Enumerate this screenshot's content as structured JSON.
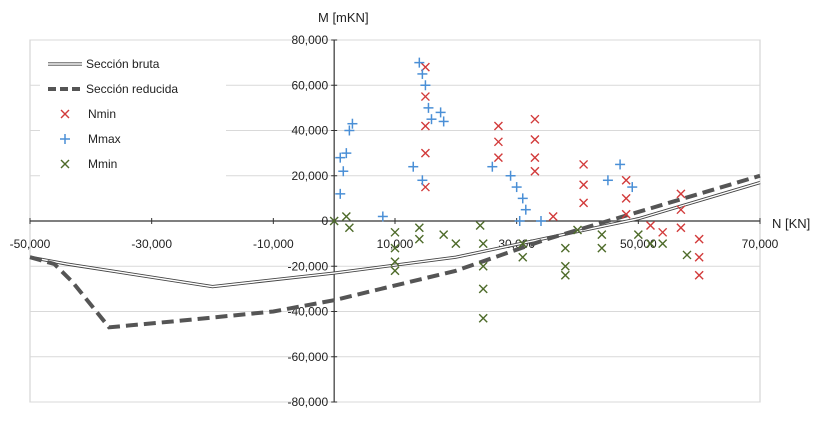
{
  "chart_data": {
    "type": "scatter",
    "title": "",
    "xlabel": "N [KN]",
    "ylabel": "M [mKN]",
    "xlim": [
      -50000,
      70000
    ],
    "ylim": [
      -80000,
      80000
    ],
    "grid": true,
    "legend_position": "top-left",
    "x_ticks": [
      "-50,000",
      "-30,000",
      "-10,000",
      "10,000",
      "30,000",
      "50,000",
      "70,000"
    ],
    "x_tick_values": [
      -50000,
      -30000,
      -10000,
      10000,
      30000,
      50000,
      70000
    ],
    "y_ticks": [
      "80,000",
      "60,000",
      "40,000",
      "20,000",
      "0",
      "-20,000",
      "-40,000",
      "-60,000",
      "-80,000"
    ],
    "y_tick_values": [
      80000,
      60000,
      40000,
      20000,
      0,
      -20000,
      -40000,
      -60000,
      -80000
    ],
    "series": [
      {
        "name": "Sección bruta",
        "kind": "line",
        "style": "double",
        "color": "#444444",
        "points": [
          [
            -50000,
            -16000
          ],
          [
            -44000,
            -19000
          ],
          [
            -20000,
            -29000
          ],
          [
            0,
            -23000
          ],
          [
            20000,
            -16000
          ],
          [
            35000,
            -7500
          ],
          [
            50000,
            1000
          ],
          [
            70000,
            17000
          ]
        ]
      },
      {
        "name": "Sección reducida",
        "kind": "line",
        "style": "dashed",
        "color": "#555555",
        "points": [
          [
            -50000,
            -16000
          ],
          [
            -46000,
            -19000
          ],
          [
            -43000,
            -27000
          ],
          [
            -37000,
            -47000
          ],
          [
            -25000,
            -44000
          ],
          [
            -10000,
            -40000
          ],
          [
            0,
            -35000
          ],
          [
            20000,
            -22000
          ],
          [
            35000,
            -8000
          ],
          [
            50000,
            4000
          ],
          [
            70000,
            20000
          ]
        ]
      },
      {
        "name": "Nmin",
        "kind": "marker",
        "marker": "x",
        "color": "#d23b3b",
        "points": [
          [
            15000,
            68000
          ],
          [
            15000,
            55000
          ],
          [
            15000,
            42000
          ],
          [
            15000,
            30000
          ],
          [
            15000,
            15000
          ],
          [
            27000,
            42000
          ],
          [
            27000,
            35000
          ],
          [
            27000,
            28000
          ],
          [
            33000,
            45000
          ],
          [
            33000,
            36000
          ],
          [
            33000,
            28000
          ],
          [
            33000,
            22000
          ],
          [
            41000,
            25000
          ],
          [
            41000,
            16000
          ],
          [
            41000,
            8000
          ],
          [
            48000,
            18000
          ],
          [
            48000,
            10000
          ],
          [
            48000,
            3000
          ],
          [
            52000,
            -2000
          ],
          [
            54000,
            -5000
          ],
          [
            57000,
            12000
          ],
          [
            57000,
            5000
          ],
          [
            57000,
            -3000
          ],
          [
            60000,
            -8000
          ],
          [
            60000,
            -16000
          ],
          [
            60000,
            -24000
          ],
          [
            36000,
            2000
          ]
        ]
      },
      {
        "name": "Mmax",
        "kind": "marker",
        "marker": "+",
        "color": "#4a8fd6",
        "points": [
          [
            1000,
            28000
          ],
          [
            1500,
            22000
          ],
          [
            2000,
            30000
          ],
          [
            2500,
            40000
          ],
          [
            3000,
            43000
          ],
          [
            1000,
            12000
          ],
          [
            8000,
            2000
          ],
          [
            13000,
            24000
          ],
          [
            14000,
            70000
          ],
          [
            14500,
            65000
          ],
          [
            15000,
            60000
          ],
          [
            15500,
            50000
          ],
          [
            16000,
            45000
          ],
          [
            17500,
            48000
          ],
          [
            18000,
            44000
          ],
          [
            14500,
            18000
          ],
          [
            26000,
            24000
          ],
          [
            29000,
            20000
          ],
          [
            30000,
            15000
          ],
          [
            31000,
            10000
          ],
          [
            31500,
            5000
          ],
          [
            30500,
            0
          ],
          [
            34000,
            0
          ],
          [
            45000,
            18000
          ],
          [
            47000,
            25000
          ],
          [
            49000,
            15000
          ]
        ]
      },
      {
        "name": "Mmin",
        "kind": "marker",
        "marker": "x",
        "color": "#4e6b2a",
        "points": [
          [
            0,
            0
          ],
          [
            2000,
            2000
          ],
          [
            2500,
            -3000
          ],
          [
            10000,
            -5000
          ],
          [
            10000,
            -12000
          ],
          [
            10000,
            -18000
          ],
          [
            10000,
            -22000
          ],
          [
            14000,
            -3000
          ],
          [
            14000,
            -8000
          ],
          [
            18000,
            -6000
          ],
          [
            20000,
            -10000
          ],
          [
            24000,
            -2000
          ],
          [
            24500,
            -10000
          ],
          [
            24500,
            -20000
          ],
          [
            24500,
            -30000
          ],
          [
            24500,
            -43000
          ],
          [
            31000,
            -10000
          ],
          [
            31000,
            -16000
          ],
          [
            38000,
            -12000
          ],
          [
            38000,
            -20000
          ],
          [
            38000,
            -24000
          ],
          [
            44000,
            -6000
          ],
          [
            44000,
            -12000
          ],
          [
            50000,
            -6000
          ],
          [
            52000,
            -10000
          ],
          [
            54000,
            -10000
          ],
          [
            58000,
            -15000
          ],
          [
            40000,
            -4000
          ]
        ]
      }
    ]
  }
}
